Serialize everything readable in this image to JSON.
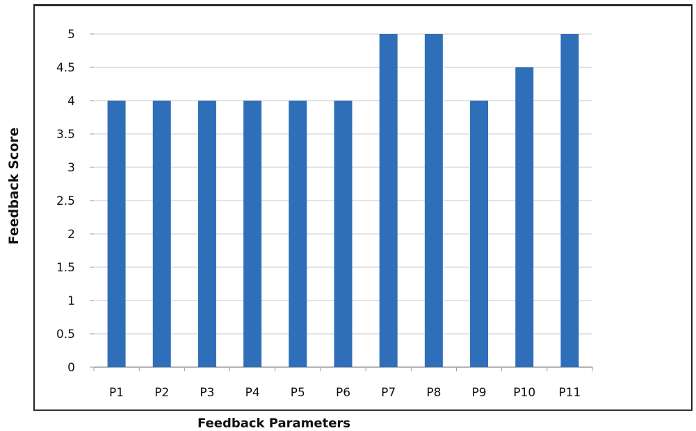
{
  "chart_data": {
    "type": "bar",
    "categories": [
      "P1",
      "P2",
      "P3",
      "P4",
      "P5",
      "P6",
      "P7",
      "P8",
      "P9",
      "P10",
      "P11"
    ],
    "values": [
      4,
      4,
      4,
      4,
      4,
      4,
      5,
      5,
      4,
      4.5,
      5
    ],
    "title": "",
    "xlabel": "Feedback Parameters",
    "ylabel": "Feedback Score",
    "ylim": [
      0,
      5
    ],
    "yticks": [
      "0",
      "0.5",
      "1",
      "1.5",
      "2",
      "2.5",
      "3",
      "3.5",
      "4",
      "4.5",
      "5"
    ],
    "grid": true,
    "legend": "none",
    "bar_color": "#2f6fba",
    "grid_color": "#d4d4d4"
  }
}
